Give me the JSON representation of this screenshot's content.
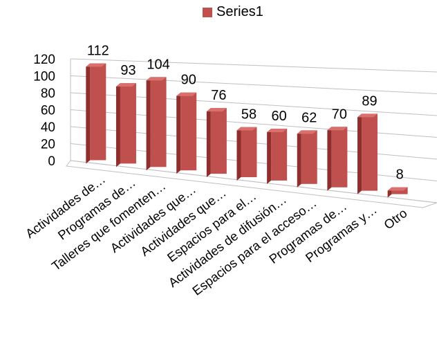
{
  "chart_data": {
    "type": "bar",
    "categories": [
      "Actividades de…",
      "Programas de…",
      "Talleres que fomenten…",
      "Actividades que…",
      "Actividades que…",
      "Espacios para el…",
      "Actividades de difusión…",
      "Espacios para el acceso…",
      "Programas de…",
      "Programas y…",
      "Otro"
    ],
    "series": [
      {
        "name": "Series1",
        "values": [
          112,
          93,
          104,
          90,
          76,
          58,
          60,
          62,
          70,
          89,
          8
        ]
      }
    ],
    "ylim": [
      0,
      120
    ],
    "yticks": [
      "0",
      "20",
      "40",
      "60",
      "80",
      "100",
      "120"
    ],
    "grid": true,
    "legend": "top-center",
    "colors": {
      "bar_front": "#c0504d",
      "bar_side": "#8e2f2d",
      "bar_top": "#d9706d",
      "grid": "#bfbfbf"
    }
  }
}
